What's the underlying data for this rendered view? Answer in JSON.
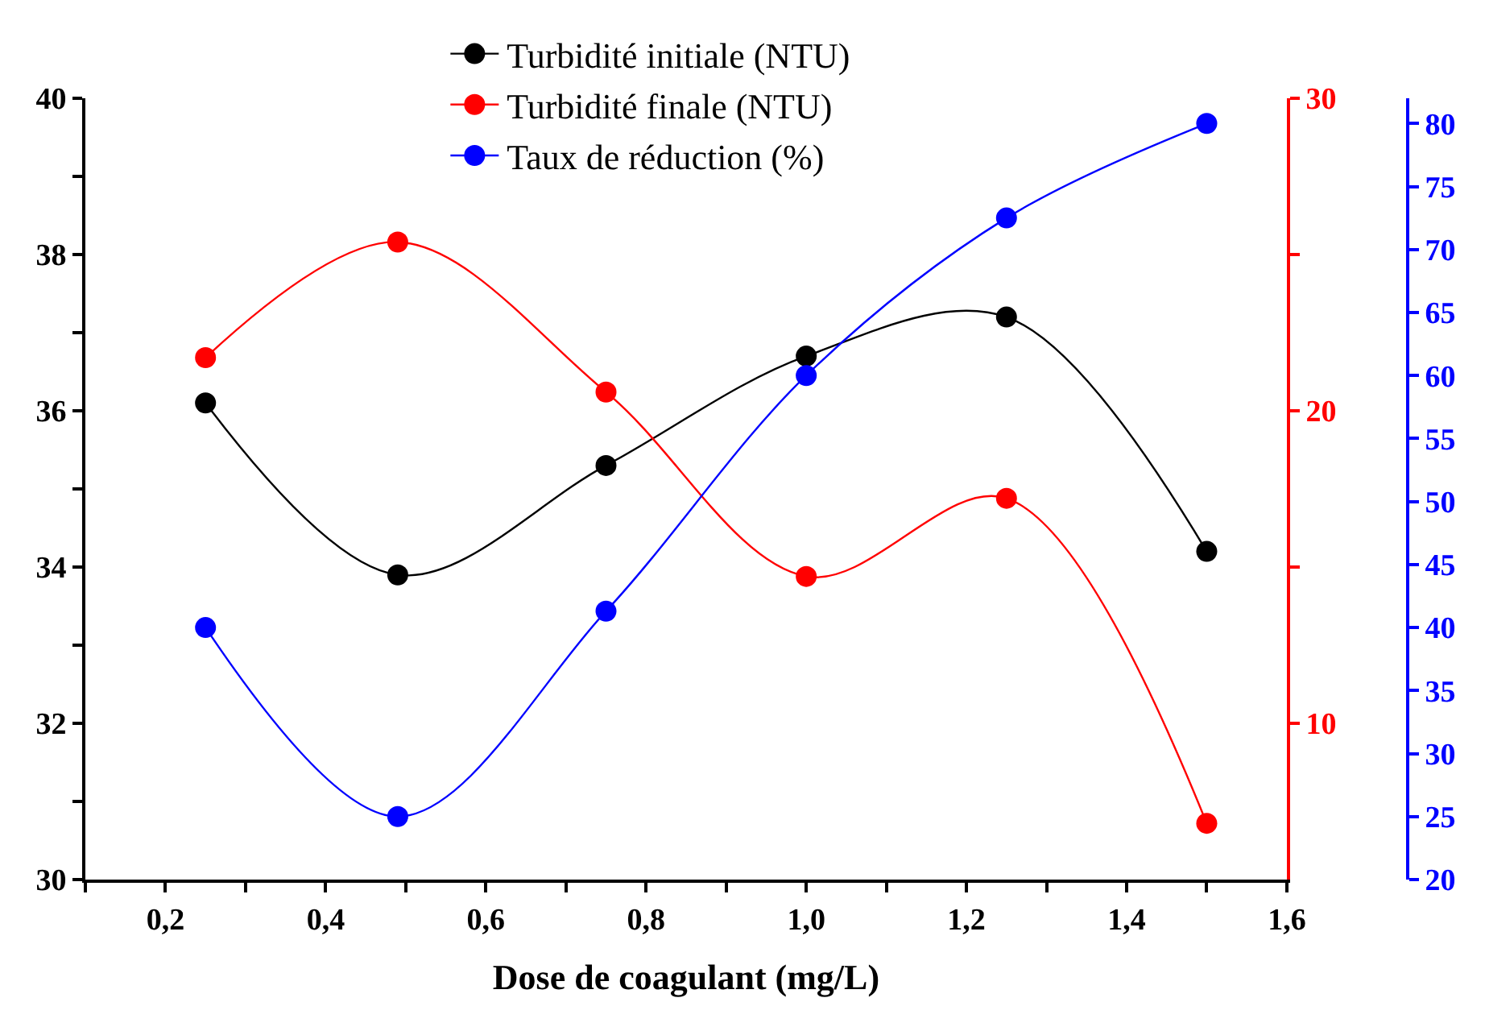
{
  "chart_data": {
    "type": "line",
    "xlabel": "Dose de coagulant (mg/L)",
    "x": [
      0.25,
      0.49,
      0.75,
      1.0,
      1.25,
      1.5
    ],
    "series": [
      {
        "name": "Turbidité initiale (NTU)",
        "color": "#000000",
        "axis": "y",
        "values": [
          36.1,
          33.9,
          35.3,
          36.7,
          37.2,
          34.2
        ]
      },
      {
        "name": "Turbidité finale (NTU)",
        "color": "#ff0000",
        "axis": "y2",
        "values": [
          21.7,
          25.4,
          20.6,
          14.7,
          17.2,
          6.8
        ]
      },
      {
        "name": "Taux de réduction (%)",
        "color": "#0000ff",
        "axis": "y3",
        "values": [
          40,
          25,
          41.3,
          60,
          72.5,
          80
        ]
      }
    ],
    "xlim": [
      0.1,
      1.6
    ],
    "xticks": [
      {
        "value": 0.1,
        "label": null
      },
      {
        "value": 0.2,
        "label": "0,2"
      },
      {
        "value": 0.3,
        "label": null
      },
      {
        "value": 0.4,
        "label": "0,4"
      },
      {
        "value": 0.5,
        "label": null
      },
      {
        "value": 0.6,
        "label": "0,6"
      },
      {
        "value": 0.7,
        "label": null
      },
      {
        "value": 0.8,
        "label": "0,8"
      },
      {
        "value": 0.9,
        "label": null
      },
      {
        "value": 1.0,
        "label": "1,0"
      },
      {
        "value": 1.1,
        "label": null
      },
      {
        "value": 1.2,
        "label": "1,2"
      },
      {
        "value": 1.3,
        "label": null
      },
      {
        "value": 1.4,
        "label": "1,4"
      },
      {
        "value": 1.5,
        "label": null
      },
      {
        "value": 1.6,
        "label": "1,6"
      }
    ],
    "ylim": [
      30,
      40
    ],
    "yticks": [
      30,
      {
        "value": 31,
        "label": null
      },
      32,
      {
        "value": 33,
        "label": null
      },
      34,
      {
        "value": 35,
        "label": null
      },
      36,
      {
        "value": 37,
        "label": null
      },
      38,
      {
        "value": 39,
        "label": null
      },
      40
    ],
    "y2lim": [
      5,
      30
    ],
    "y2ticks": [
      10,
      {
        "value": 15,
        "label": null
      },
      20,
      {
        "value": 25,
        "label": null
      },
      30
    ],
    "y3lim": [
      20,
      82
    ],
    "y3ticks": [
      20,
      25,
      30,
      35,
      40,
      45,
      50,
      55,
      60,
      65,
      70,
      75,
      80
    ],
    "marker": "circle",
    "line_style": "solid",
    "legend": "top",
    "grid": false
  }
}
